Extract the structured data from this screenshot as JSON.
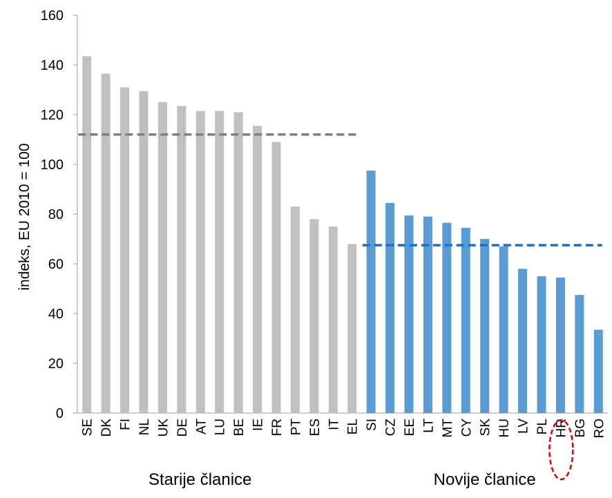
{
  "chart_data": {
    "type": "bar",
    "ylabel": "indeks, EU 2010 = 100",
    "xlabel": "",
    "ylim": [
      0,
      160
    ],
    "yticks": [
      0,
      20,
      40,
      60,
      80,
      100,
      120,
      140,
      160
    ],
    "grid": false,
    "categories": [
      "SE",
      "DK",
      "FI",
      "NL",
      "UK",
      "DE",
      "AT",
      "LU",
      "BE",
      "IE",
      "FR",
      "PT",
      "ES",
      "IT",
      "EL",
      "SI",
      "CZ",
      "EE",
      "LT",
      "MT",
      "CY",
      "SK",
      "HU",
      "LV",
      "PL",
      "HR",
      "BG",
      "RO"
    ],
    "series": [
      {
        "values": [
          143.5,
          136.5,
          131,
          129.5,
          125,
          123.5,
          121.5,
          121.5,
          121,
          115.5,
          109,
          83,
          78,
          75,
          68,
          97.5,
          84.5,
          79.5,
          79,
          76.5,
          74.5,
          70,
          67,
          58,
          55,
          54.5,
          47.5,
          33.5
        ],
        "colors": [
          "#c0c0c0",
          "#c0c0c0",
          "#c0c0c0",
          "#c0c0c0",
          "#c0c0c0",
          "#c0c0c0",
          "#c0c0c0",
          "#c0c0c0",
          "#c0c0c0",
          "#c0c0c0",
          "#c0c0c0",
          "#c0c0c0",
          "#c0c0c0",
          "#c0c0c0",
          "#c0c0c0",
          "#5b9bd5",
          "#5b9bd5",
          "#5b9bd5",
          "#5b9bd5",
          "#5b9bd5",
          "#5b9bd5",
          "#5b9bd5",
          "#5b9bd5",
          "#5b9bd5",
          "#5b9bd5",
          "#5b9bd5",
          "#5b9bd5",
          "#5b9bd5"
        ]
      }
    ],
    "averages": [
      {
        "value": 112,
        "from": "SE",
        "to": "EL",
        "color": "#7f7f7f",
        "style": "dashed"
      },
      {
        "value": 67.5,
        "from": "SI",
        "to": "RO",
        "color": "#1f6fbf",
        "style": "dashed"
      }
    ],
    "groups": [
      {
        "label": "Starije članice",
        "from": "SE",
        "to": "EL"
      },
      {
        "label": "Novije članice",
        "from": "SI",
        "to": "RO"
      }
    ],
    "highlight": {
      "category": "HR",
      "shape": "dashed-ellipse",
      "color": "#e00000"
    },
    "colors": {
      "old": "#c0c0c0",
      "new": "#5b9bd5",
      "axis": "#b0b0b0"
    }
  }
}
